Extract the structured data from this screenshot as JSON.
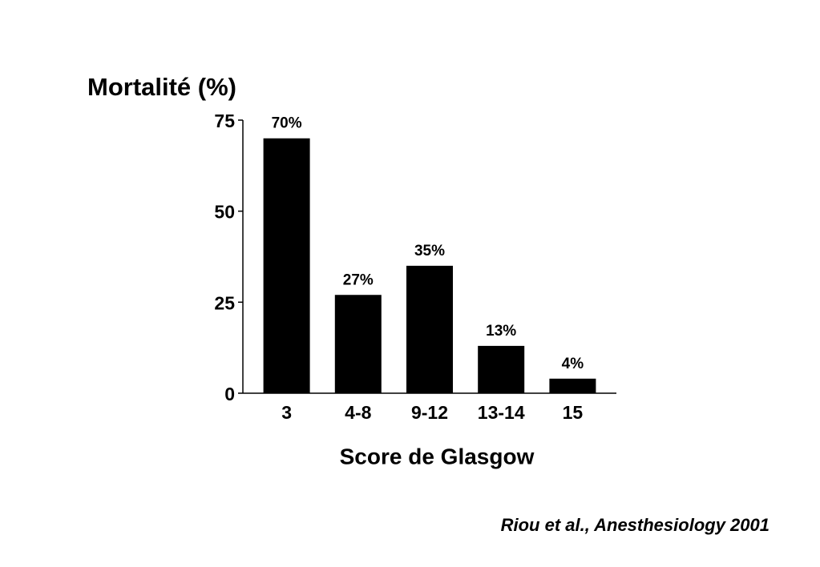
{
  "chart_data": {
    "type": "bar",
    "title": "Mortalité (%)",
    "x_label": "Score de Glasgow",
    "source": "Riou et al., Anesthesiology 2001",
    "categories": [
      "3",
      "4-8",
      "9-12",
      "13-14",
      "15"
    ],
    "values": [
      70,
      27,
      35,
      13,
      4
    ],
    "value_labels": [
      "70%",
      "27%",
      "35%",
      "13%",
      "4%"
    ],
    "color": "#000000",
    "ylim": [
      0,
      75
    ],
    "yticks": [
      0,
      25,
      50,
      75
    ],
    "grid": false
  }
}
